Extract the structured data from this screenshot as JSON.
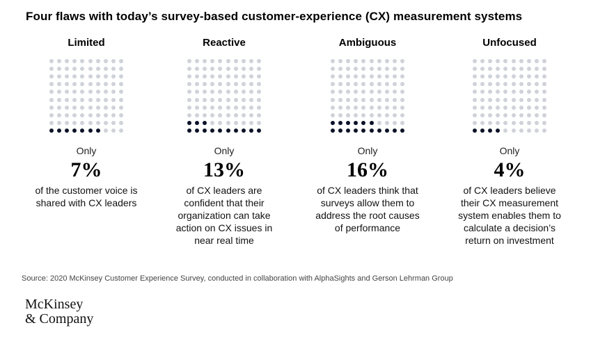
{
  "title": "Four flaws with today’s survey-based customer-experience (CX) measurement systems",
  "chart_data": {
    "type": "waffle",
    "grid": {
      "rows": 10,
      "cols": 10
    },
    "panels": [
      {
        "label": "Limited",
        "prefix": "Only",
        "value": 7,
        "value_text": "7%",
        "description": "of the customer voice is shared with CX leaders"
      },
      {
        "label": "Reactive",
        "prefix": "Only",
        "value": 13,
        "value_text": "13%",
        "description": "of CX leaders are confident that their organization can take action on CX issues in near real time"
      },
      {
        "label": "Ambiguous",
        "prefix": "Only",
        "value": 16,
        "value_text": "16%",
        "description": "of CX leaders think that surveys allow them to address the root causes of performance"
      },
      {
        "label": "Unfocused",
        "prefix": "Only",
        "value": 4,
        "value_text": "4%",
        "description": "of CX leaders believe their CX measurement system enables them to calculate a decision’s return on investment"
      }
    ],
    "colors": {
      "filled": "#0b1226",
      "empty": "#cfd2d9"
    }
  },
  "source": "Source: 2020 McKinsey Customer Experience Survey, conducted in collaboration with AlphaSights and Gerson Lehrman Group",
  "logo": {
    "line1": "McKinsey",
    "line2": "& Company"
  }
}
